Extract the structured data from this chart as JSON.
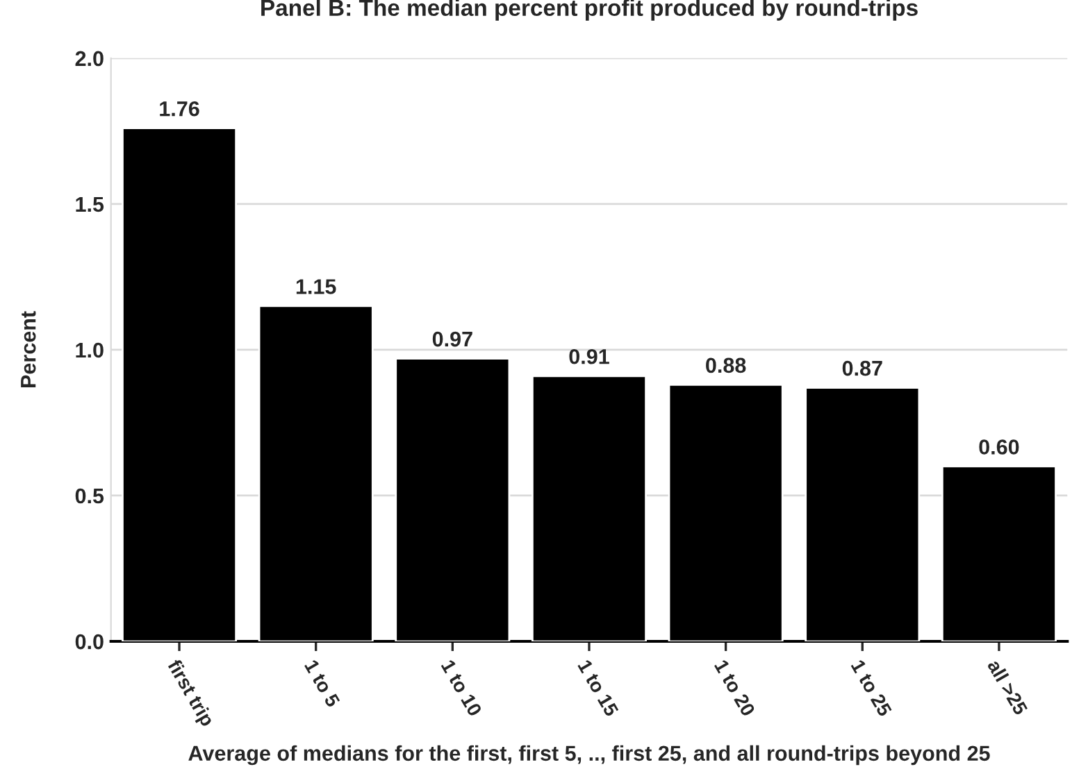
{
  "chart_data": {
    "type": "bar",
    "title": "Panel B: The median percent profit produced by round-trips",
    "xlabel": "Average of medians for the first, first 5, .., first 25, and all round-trips beyond 25",
    "ylabel": "Percent",
    "categories": [
      "first trip",
      "1 to 5",
      "1 to 10",
      "1 to 15",
      "1 to 20",
      "1 to 25",
      "all >25"
    ],
    "values": [
      1.76,
      1.15,
      0.97,
      0.91,
      0.88,
      0.87,
      0.6
    ],
    "value_labels": [
      "1.76",
      "1.15",
      "0.97",
      "0.91",
      "0.88",
      "0.87",
      "0.60"
    ],
    "color": "#000000",
    "ylim": [
      0,
      2.0
    ],
    "yticks": [
      {
        "value": 0,
        "label": "0.0"
      },
      {
        "value": 0.5,
        "label": "0.5"
      },
      {
        "value": 1.0,
        "label": "1.0"
      },
      {
        "value": 1.5,
        "label": "1.5"
      },
      {
        "value": 2.0,
        "label": "2.0"
      }
    ],
    "grid": "y",
    "legend": false
  }
}
